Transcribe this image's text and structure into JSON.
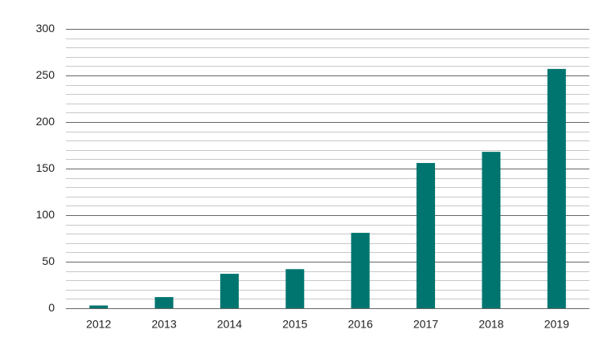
{
  "chart_data": {
    "type": "bar",
    "categories": [
      "2012",
      "2013",
      "2014",
      "2015",
      "2016",
      "2017",
      "2018",
      "2019"
    ],
    "values": [
      3,
      12,
      37,
      42,
      81,
      156,
      168,
      257
    ],
    "color": "#00756f",
    "ylim": [
      0,
      300
    ],
    "yticks": [
      0,
      50,
      100,
      150,
      200,
      250,
      300
    ],
    "minor_yticks": [
      10,
      20,
      30,
      40,
      60,
      70,
      80,
      90,
      110,
      120,
      130,
      140,
      160,
      170,
      180,
      190,
      210,
      220,
      230,
      240,
      260,
      270,
      280,
      290
    ],
    "grid": true
  }
}
